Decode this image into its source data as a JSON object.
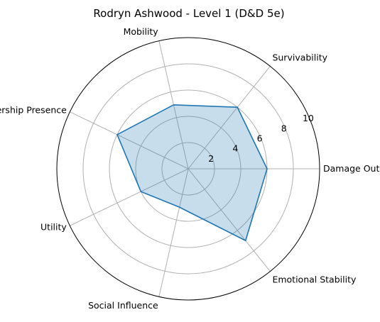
{
  "chart_data": {
    "type": "radar",
    "title": "Rodryn Ashwood - Level 1 (D&D 5e)",
    "categories": [
      "Damage Output",
      "Survivability",
      "Mobility",
      "Leadership Presence",
      "Utility",
      "Social Influence",
      "Emotional Stability"
    ],
    "series": [
      {
        "values": [
          6,
          6,
          5,
          6,
          4,
          3,
          7
        ]
      }
    ],
    "rlim": [
      0,
      10
    ],
    "radial_ticks": [
      2,
      4,
      6,
      8,
      10
    ],
    "radial_tick_labels": [
      "2",
      "4",
      "6",
      "8",
      "10"
    ],
    "grid": true,
    "colors": {
      "line": "#1f77b4",
      "fill": "#1f77b4",
      "grid": "#b0b0b0",
      "frame": "#000000"
    }
  }
}
